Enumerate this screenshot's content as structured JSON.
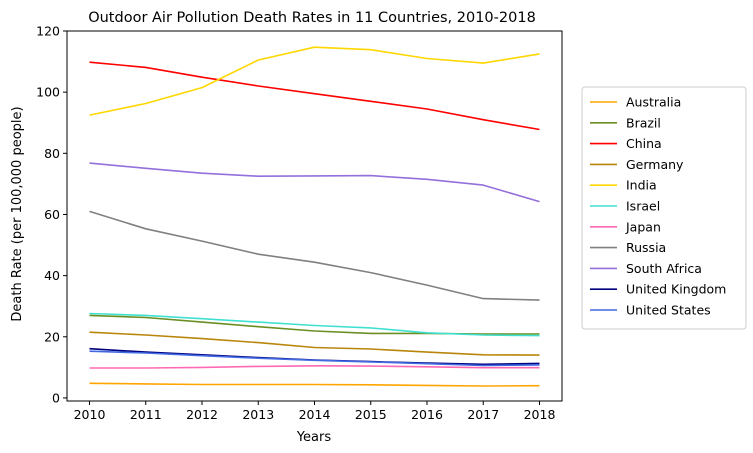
{
  "chart_data": {
    "type": "line",
    "title": "Outdoor Air Pollution Death Rates in 11 Countries, 2010-2018",
    "xlabel": "Years",
    "ylabel": "Death Rate (per 100,000 people)",
    "x": [
      2010,
      2011,
      2012,
      2013,
      2014,
      2015,
      2016,
      2017,
      2018
    ],
    "xlim": [
      2009.6,
      2018.4
    ],
    "ylim": [
      -1,
      120
    ],
    "yticks": [
      0,
      20,
      40,
      60,
      80,
      100,
      120
    ],
    "grid": false,
    "legend_position": "right, outside plot",
    "series": [
      {
        "name": "Australia",
        "color": "#FFA500",
        "values": [
          4.8,
          4.6,
          4.4,
          4.4,
          4.4,
          4.3,
          4.1,
          3.9,
          4.0
        ]
      },
      {
        "name": "Brazil",
        "color": "#6B8E23",
        "values": [
          27.0,
          26.3,
          24.8,
          23.3,
          21.9,
          21.1,
          21.1,
          20.9,
          20.9
        ]
      },
      {
        "name": "China",
        "color": "#FF0000",
        "values": [
          109.8,
          108.1,
          104.9,
          102.0,
          99.5,
          97.0,
          94.5,
          91.0,
          87.8
        ]
      },
      {
        "name": "Germany",
        "color": "#B8860B",
        "values": [
          21.5,
          20.6,
          19.4,
          18.1,
          16.5,
          16.0,
          15.0,
          14.1,
          14.0
        ]
      },
      {
        "name": "India",
        "color": "#FFD700",
        "values": [
          92.5,
          96.3,
          101.5,
          110.5,
          114.7,
          113.9,
          111.0,
          109.5,
          112.5
        ]
      },
      {
        "name": "Israel",
        "color": "#40E0D0",
        "values": [
          27.6,
          27.0,
          25.9,
          24.8,
          23.7,
          22.9,
          21.3,
          20.6,
          20.4
        ]
      },
      {
        "name": "Japan",
        "color": "#FF69B4",
        "values": [
          9.8,
          9.8,
          10.0,
          10.3,
          10.5,
          10.4,
          10.2,
          9.9,
          9.9
        ]
      },
      {
        "name": "Russia",
        "color": "#808080",
        "values": [
          61.0,
          55.3,
          51.3,
          47.0,
          44.4,
          41.0,
          36.9,
          32.5,
          32.0
        ]
      },
      {
        "name": "South Africa",
        "color": "#9370DB",
        "values": [
          76.8,
          75.1,
          73.5,
          72.5,
          72.6,
          72.7,
          71.5,
          69.6,
          64.2
        ]
      },
      {
        "name": "United Kingdom",
        "color": "#000080",
        "values": [
          16.1,
          15.0,
          14.1,
          13.2,
          12.4,
          11.9,
          11.4,
          11.0,
          11.3
        ]
      },
      {
        "name": "United States",
        "color": "#4169E1",
        "values": [
          15.3,
          14.7,
          13.8,
          13.0,
          12.3,
          11.8,
          11.2,
          10.6,
          10.8
        ]
      }
    ]
  }
}
